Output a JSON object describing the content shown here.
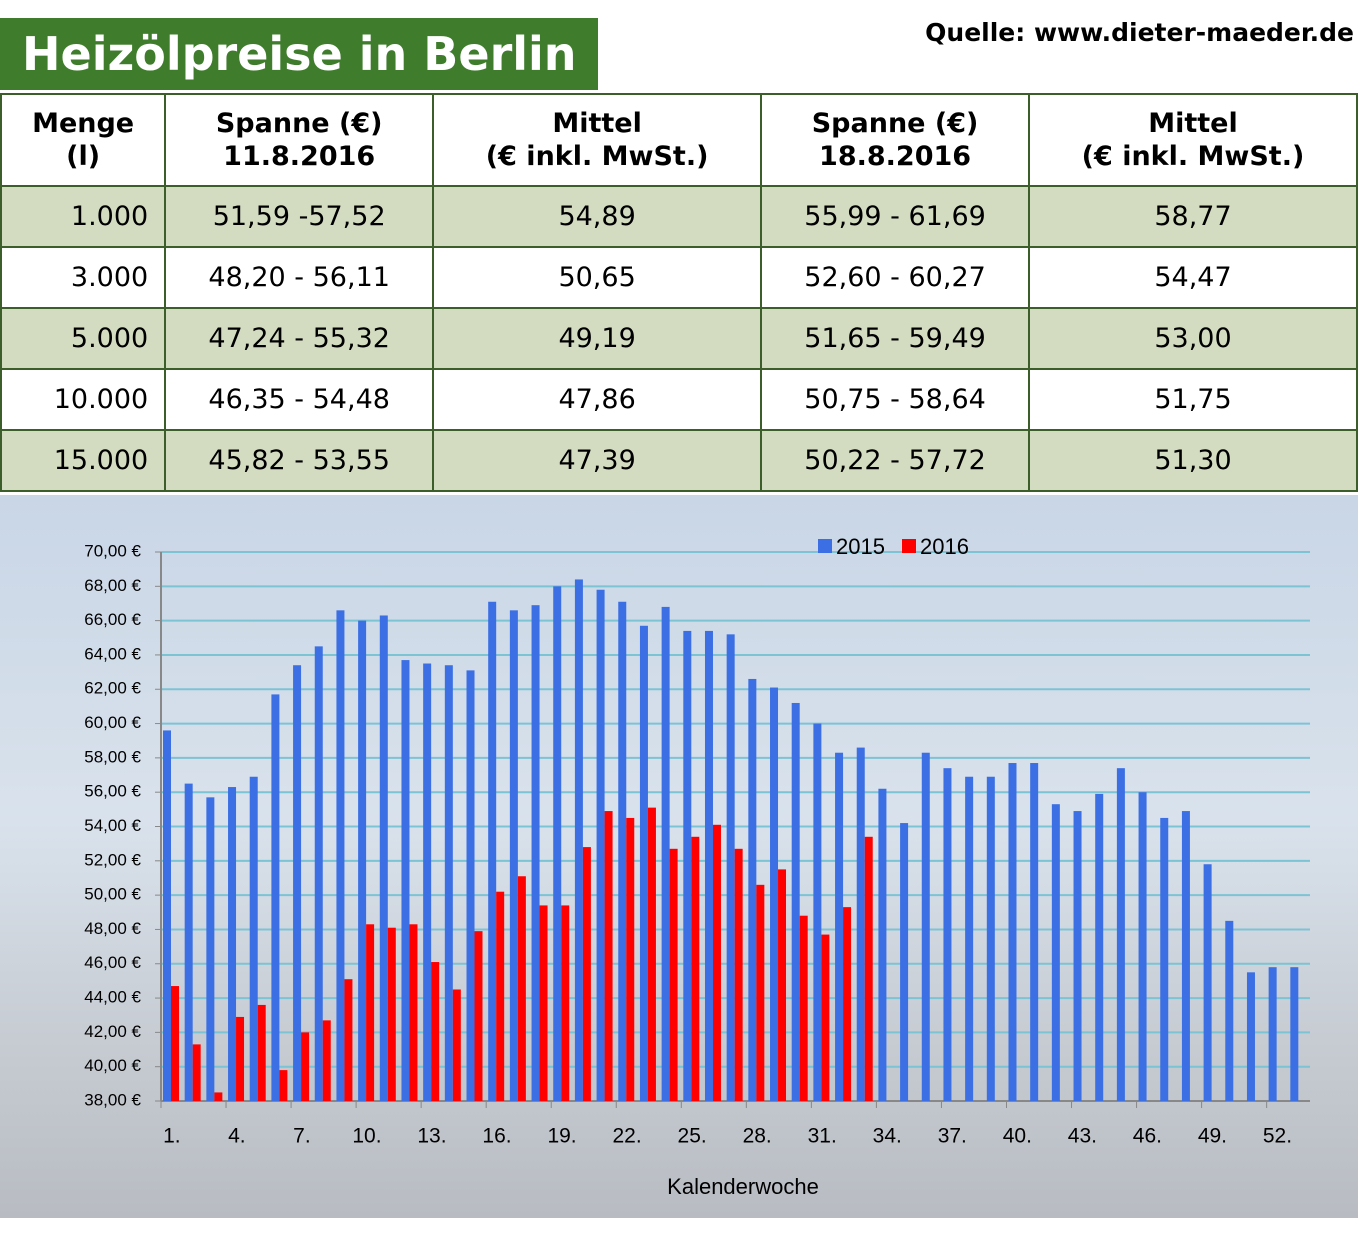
{
  "header": {
    "title": "Heizölpreise in Berlin",
    "source": "Quelle: www.dieter-maeder.de"
  },
  "table": {
    "header": [
      [
        "Menge",
        "(l)"
      ],
      [
        "Spanne (€)",
        "11.8.2016"
      ],
      [
        "Mittel",
        "(€ inkl. MwSt.)"
      ],
      [
        "Spanne (€)",
        "18.8.2016"
      ],
      [
        "Mittel",
        "(€ inkl. MwSt.)"
      ]
    ],
    "rows": [
      [
        "1.000",
        "51,59 -57,52",
        "54,89",
        "55,99 - 61,69",
        "58,77"
      ],
      [
        "3.000",
        "48,20 - 56,11",
        "50,65",
        "52,60 - 60,27",
        "54,47"
      ],
      [
        "5.000",
        "47,24 - 55,32",
        "49,19",
        "51,65 - 59,49",
        "53,00"
      ],
      [
        "10.000",
        "46,35 - 54,48",
        "47,86",
        "50,75 - 58,64",
        "51,75"
      ],
      [
        "15.000",
        "45,82 - 53,55",
        "47,39",
        "50,22 - 57,72",
        "51,30"
      ]
    ]
  },
  "chart_data": {
    "type": "bar",
    "x_label": "Kalenderwoche",
    "categories": [
      "1.",
      null,
      null,
      "4.",
      null,
      null,
      "7.",
      null,
      null,
      "10.",
      null,
      null,
      "13.",
      null,
      null,
      "16.",
      null,
      null,
      "19.",
      null,
      null,
      "22.",
      null,
      null,
      "25.",
      null,
      null,
      "28.",
      null,
      null,
      "31.",
      null,
      null,
      "34.",
      null,
      null,
      "37.",
      null,
      null,
      "40.",
      null,
      null,
      "43.",
      null,
      null,
      "46.",
      null,
      null,
      "49.",
      null,
      null,
      "52.",
      null
    ],
    "series": [
      {
        "name": "2015",
        "color": "#3b6fe3",
        "values": [
          59.6,
          56.5,
          55.7,
          56.3,
          56.9,
          61.7,
          63.4,
          64.5,
          66.6,
          66.0,
          66.3,
          63.7,
          63.5,
          63.4,
          63.1,
          67.1,
          66.6,
          66.9,
          68.0,
          68.4,
          67.8,
          67.1,
          65.7,
          66.8,
          65.4,
          65.4,
          65.2,
          62.6,
          62.1,
          61.2,
          60.0,
          58.3,
          58.6,
          56.2,
          54.2,
          58.3,
          57.4,
          56.9,
          56.9,
          57.7,
          57.7,
          55.3,
          54.9,
          55.9,
          57.4,
          56.0,
          54.5,
          54.9,
          51.8,
          48.5,
          45.5,
          45.8,
          45.8
        ]
      },
      {
        "name": "2016",
        "color": "#ff0000",
        "values": [
          44.7,
          41.3,
          38.5,
          42.9,
          43.6,
          39.8,
          42.0,
          42.7,
          45.1,
          48.3,
          48.1,
          48.3,
          46.1,
          44.5,
          47.9,
          50.2,
          51.1,
          49.4,
          49.4,
          52.8,
          54.9,
          54.5,
          55.1,
          52.7,
          53.4,
          54.1,
          52.7,
          50.6,
          51.5,
          48.8,
          47.7,
          49.3,
          53.4,
          null,
          null,
          null,
          null,
          null,
          null,
          null,
          null,
          null,
          null,
          null,
          null,
          null,
          null,
          null,
          null,
          null,
          null,
          null,
          null
        ]
      }
    ],
    "ylim": [
      38,
      70
    ],
    "yticks": [
      {
        "value": 38,
        "label": "38,00 €"
      },
      {
        "value": 40,
        "label": "40,00 €"
      },
      {
        "value": 42,
        "label": "42,00 €"
      },
      {
        "value": 44,
        "label": "44,00 €"
      },
      {
        "value": 46,
        "label": "46,00 €"
      },
      {
        "value": 48,
        "label": "48,00 €"
      },
      {
        "value": 50,
        "label": "50,00 €"
      },
      {
        "value": 52,
        "label": "52,00 €"
      },
      {
        "value": 54,
        "label": "54,00 €"
      },
      {
        "value": 56,
        "label": "56,00 €"
      },
      {
        "value": 58,
        "label": "58,00 €"
      },
      {
        "value": 60,
        "label": "60,00 €"
      },
      {
        "value": 62,
        "label": "62,00 €"
      },
      {
        "value": 64,
        "label": "64,00 €"
      },
      {
        "value": 66,
        "label": "66,00 €"
      },
      {
        "value": 68,
        "label": "68,00 €"
      },
      {
        "value": 70,
        "label": "70,00 €"
      }
    ],
    "grid": true
  }
}
